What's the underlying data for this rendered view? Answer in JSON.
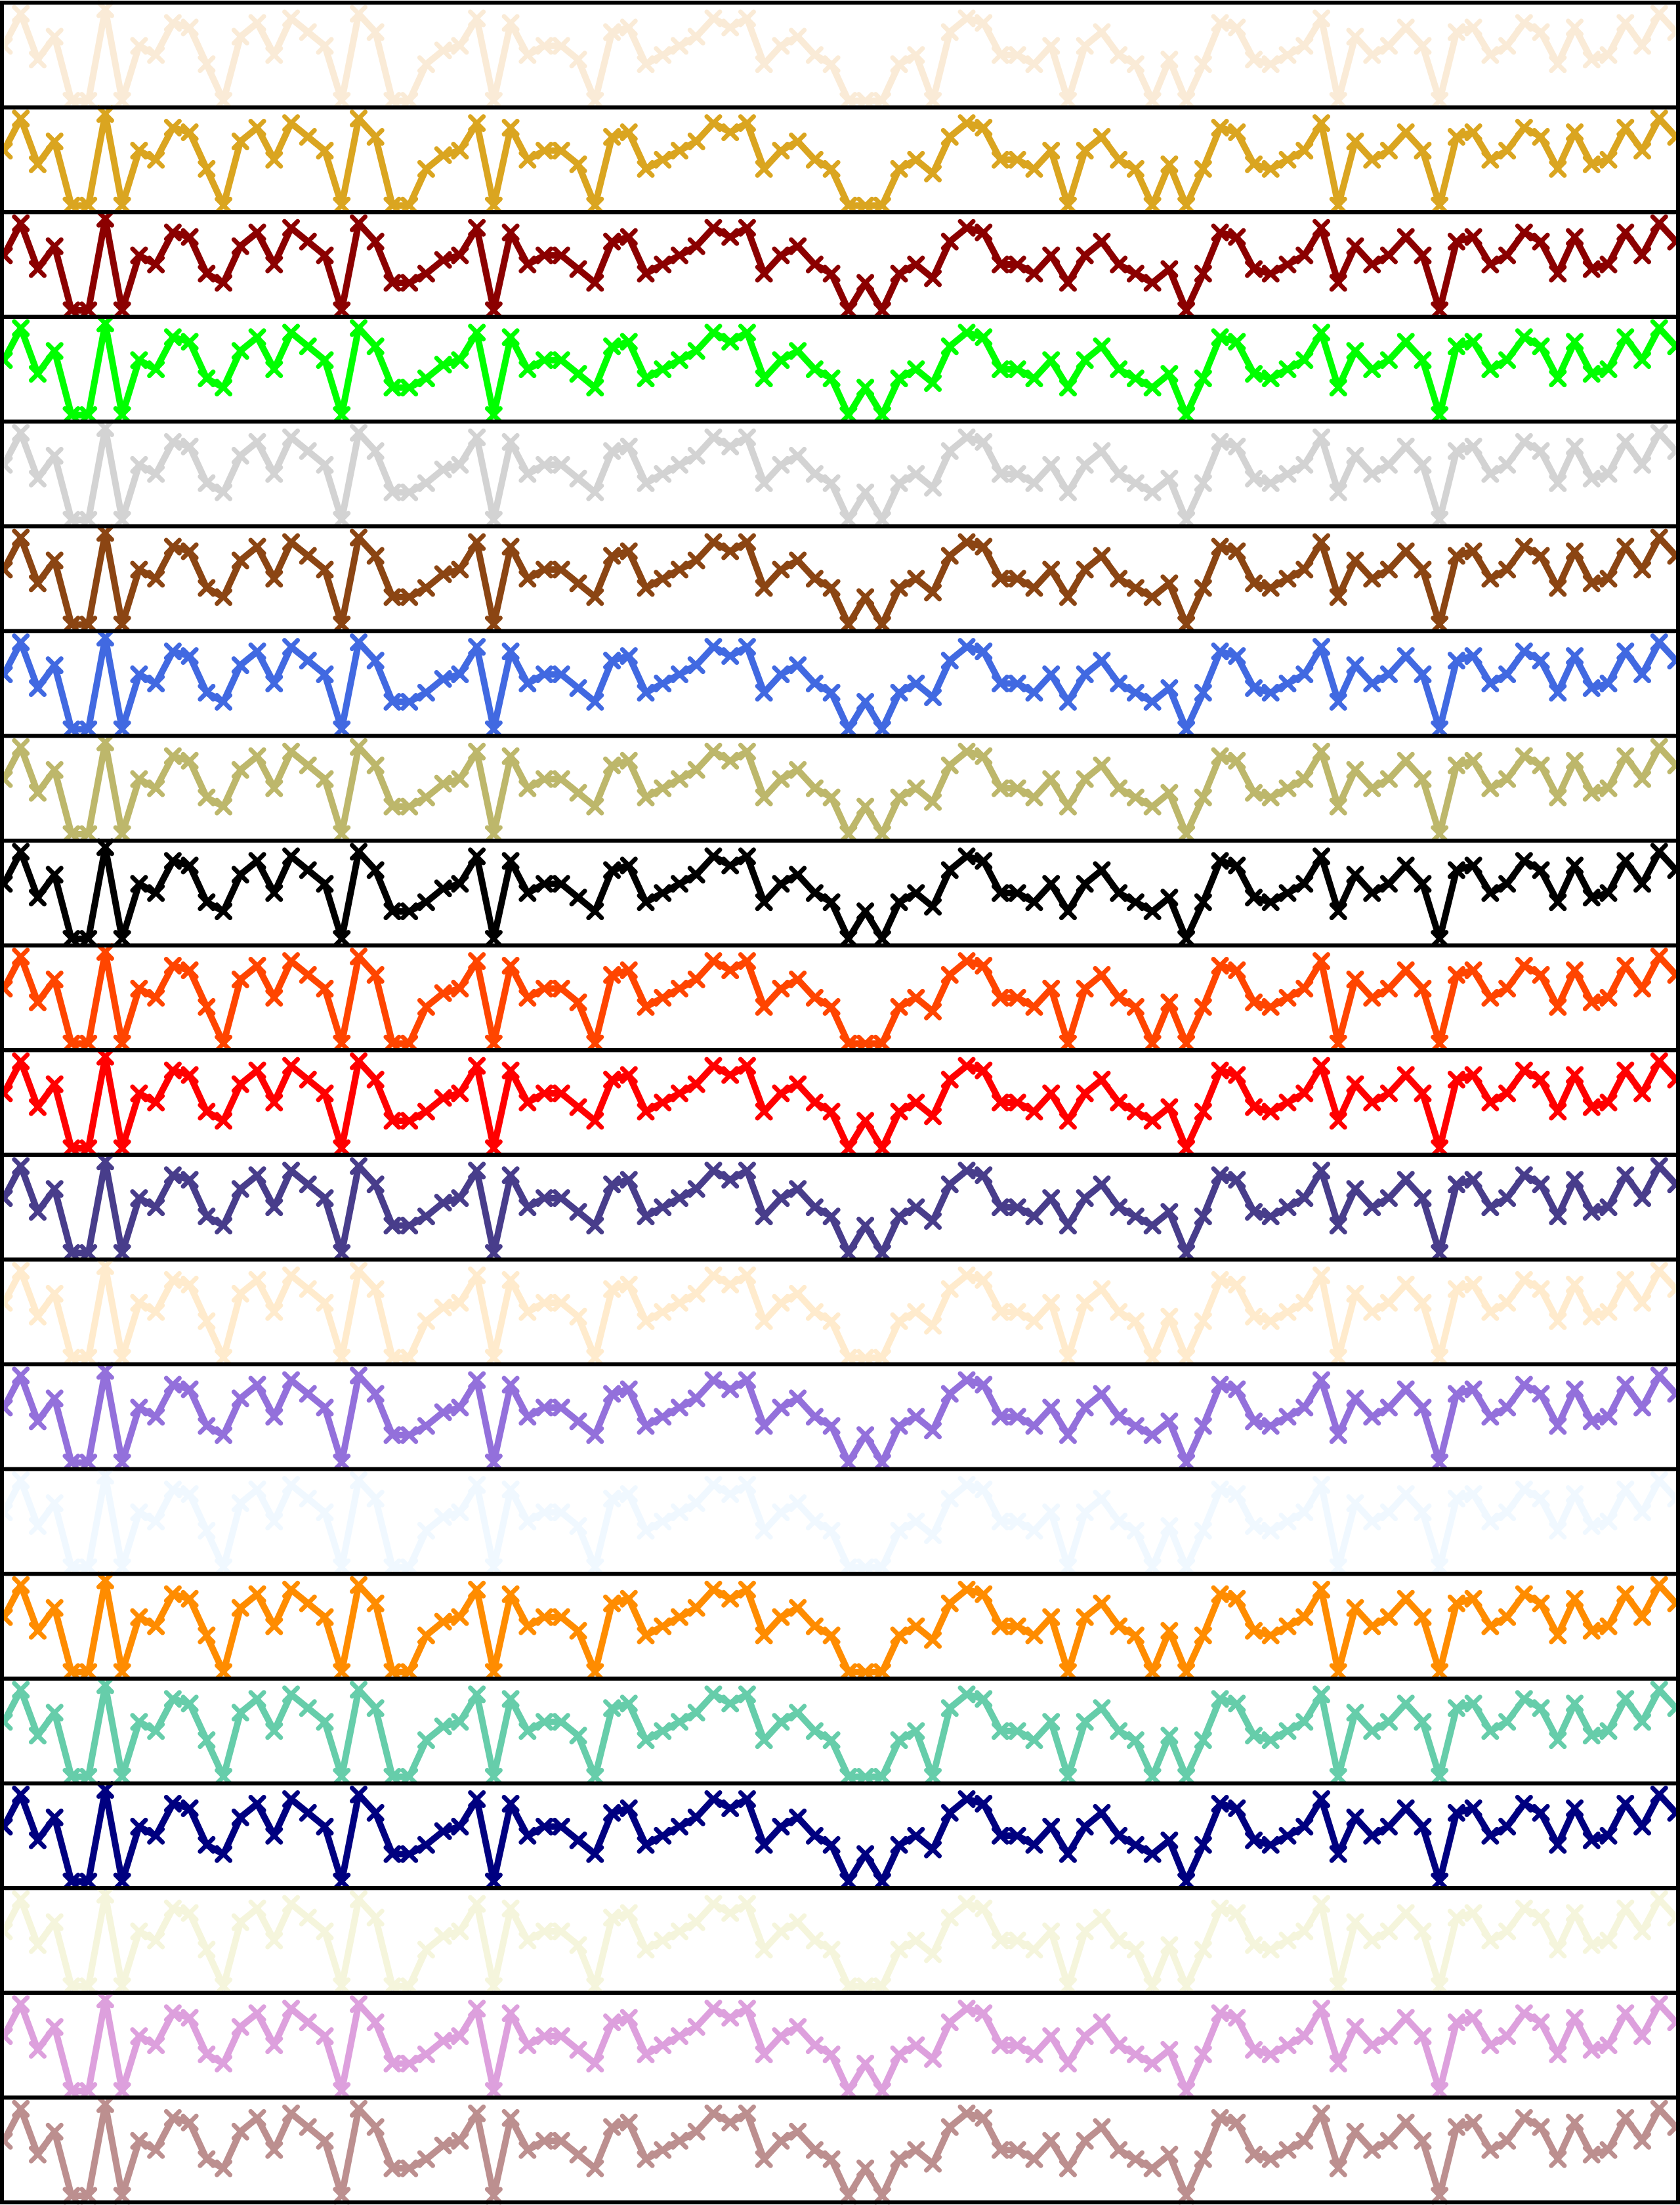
{
  "chart_data": {
    "type": "line",
    "layout": "stacked-panels",
    "points_per_series": 100,
    "marker": "x",
    "axes_visible": false,
    "grid": false,
    "legend": "none",
    "panel_border_color": "#000000",
    "base_pattern": [
      0.6,
      0.95,
      0.45,
      0.7,
      0.1,
      0.05,
      1.0,
      0.05,
      0.6,
      0.5,
      0.85,
      0.8,
      0.4,
      0.3,
      0.7,
      0.85,
      0.5,
      0.9,
      0.75,
      0.6,
      0.1,
      0.95,
      0.75,
      0.3,
      0.3,
      0.4,
      0.55,
      0.6,
      0.9,
      0.2,
      0.85,
      0.5,
      0.6,
      0.6,
      0.45,
      0.3,
      0.75,
      0.8,
      0.4,
      0.5,
      0.6,
      0.7,
      0.9,
      0.8,
      0.9,
      0.4,
      0.6,
      0.7,
      0.5,
      0.4,
      0.2,
      0.3,
      0.2,
      0.4,
      0.5,
      0.35,
      0.75,
      0.9,
      0.85,
      0.5,
      0.5,
      0.4,
      0.6,
      0.3,
      0.6,
      0.75,
      0.5,
      0.4,
      0.3,
      0.45,
      0.2,
      0.4,
      0.85,
      0.8,
      0.45,
      0.4,
      0.5,
      0.6,
      0.9,
      0.3,
      0.7,
      0.5,
      0.6,
      0.8,
      0.6,
      0.2,
      0.75,
      0.8,
      0.5,
      0.6,
      0.85,
      0.75,
      0.4,
      0.8,
      0.45,
      0.5,
      0.85,
      0.6,
      0.95,
      0.75
    ],
    "series": [
      {
        "color": "#faebd7",
        "low_threshold": 0.35
      },
      {
        "color": "#daa520",
        "low_threshold": 0.3
      },
      {
        "color": "#8b0000",
        "low_threshold": 0.25
      },
      {
        "color": "#00ff00",
        "low_threshold": 0.2
      },
      {
        "color": "#d3d3d3",
        "low_threshold": 0.25
      },
      {
        "color": "#8b4513",
        "low_threshold": 0.2
      },
      {
        "color": "#4169e1",
        "low_threshold": 0.25
      },
      {
        "color": "#bdb76b",
        "low_threshold": 0.25
      },
      {
        "color": "#000000",
        "low_threshold": 0.25
      },
      {
        "color": "#ff4500",
        "low_threshold": 0.3
      },
      {
        "color": "#ff0000",
        "low_threshold": 0.2
      },
      {
        "color": "#483d8b",
        "low_threshold": 0.25
      },
      {
        "color": "#ffebcd",
        "low_threshold": 0.3
      },
      {
        "color": "#9370db",
        "low_threshold": 0.25
      },
      {
        "color": "#f0f8ff",
        "low_threshold": 0.3
      },
      {
        "color": "#ff8c00",
        "low_threshold": 0.3
      },
      {
        "color": "#66cdaa",
        "low_threshold": 0.35
      },
      {
        "color": "#000080",
        "low_threshold": 0.2
      },
      {
        "color": "#f5f5dc",
        "low_threshold": 0.3
      },
      {
        "color": "#dda0dd",
        "low_threshold": 0.25
      },
      {
        "color": "#bc8f8f",
        "low_threshold": 0.25
      }
    ]
  }
}
